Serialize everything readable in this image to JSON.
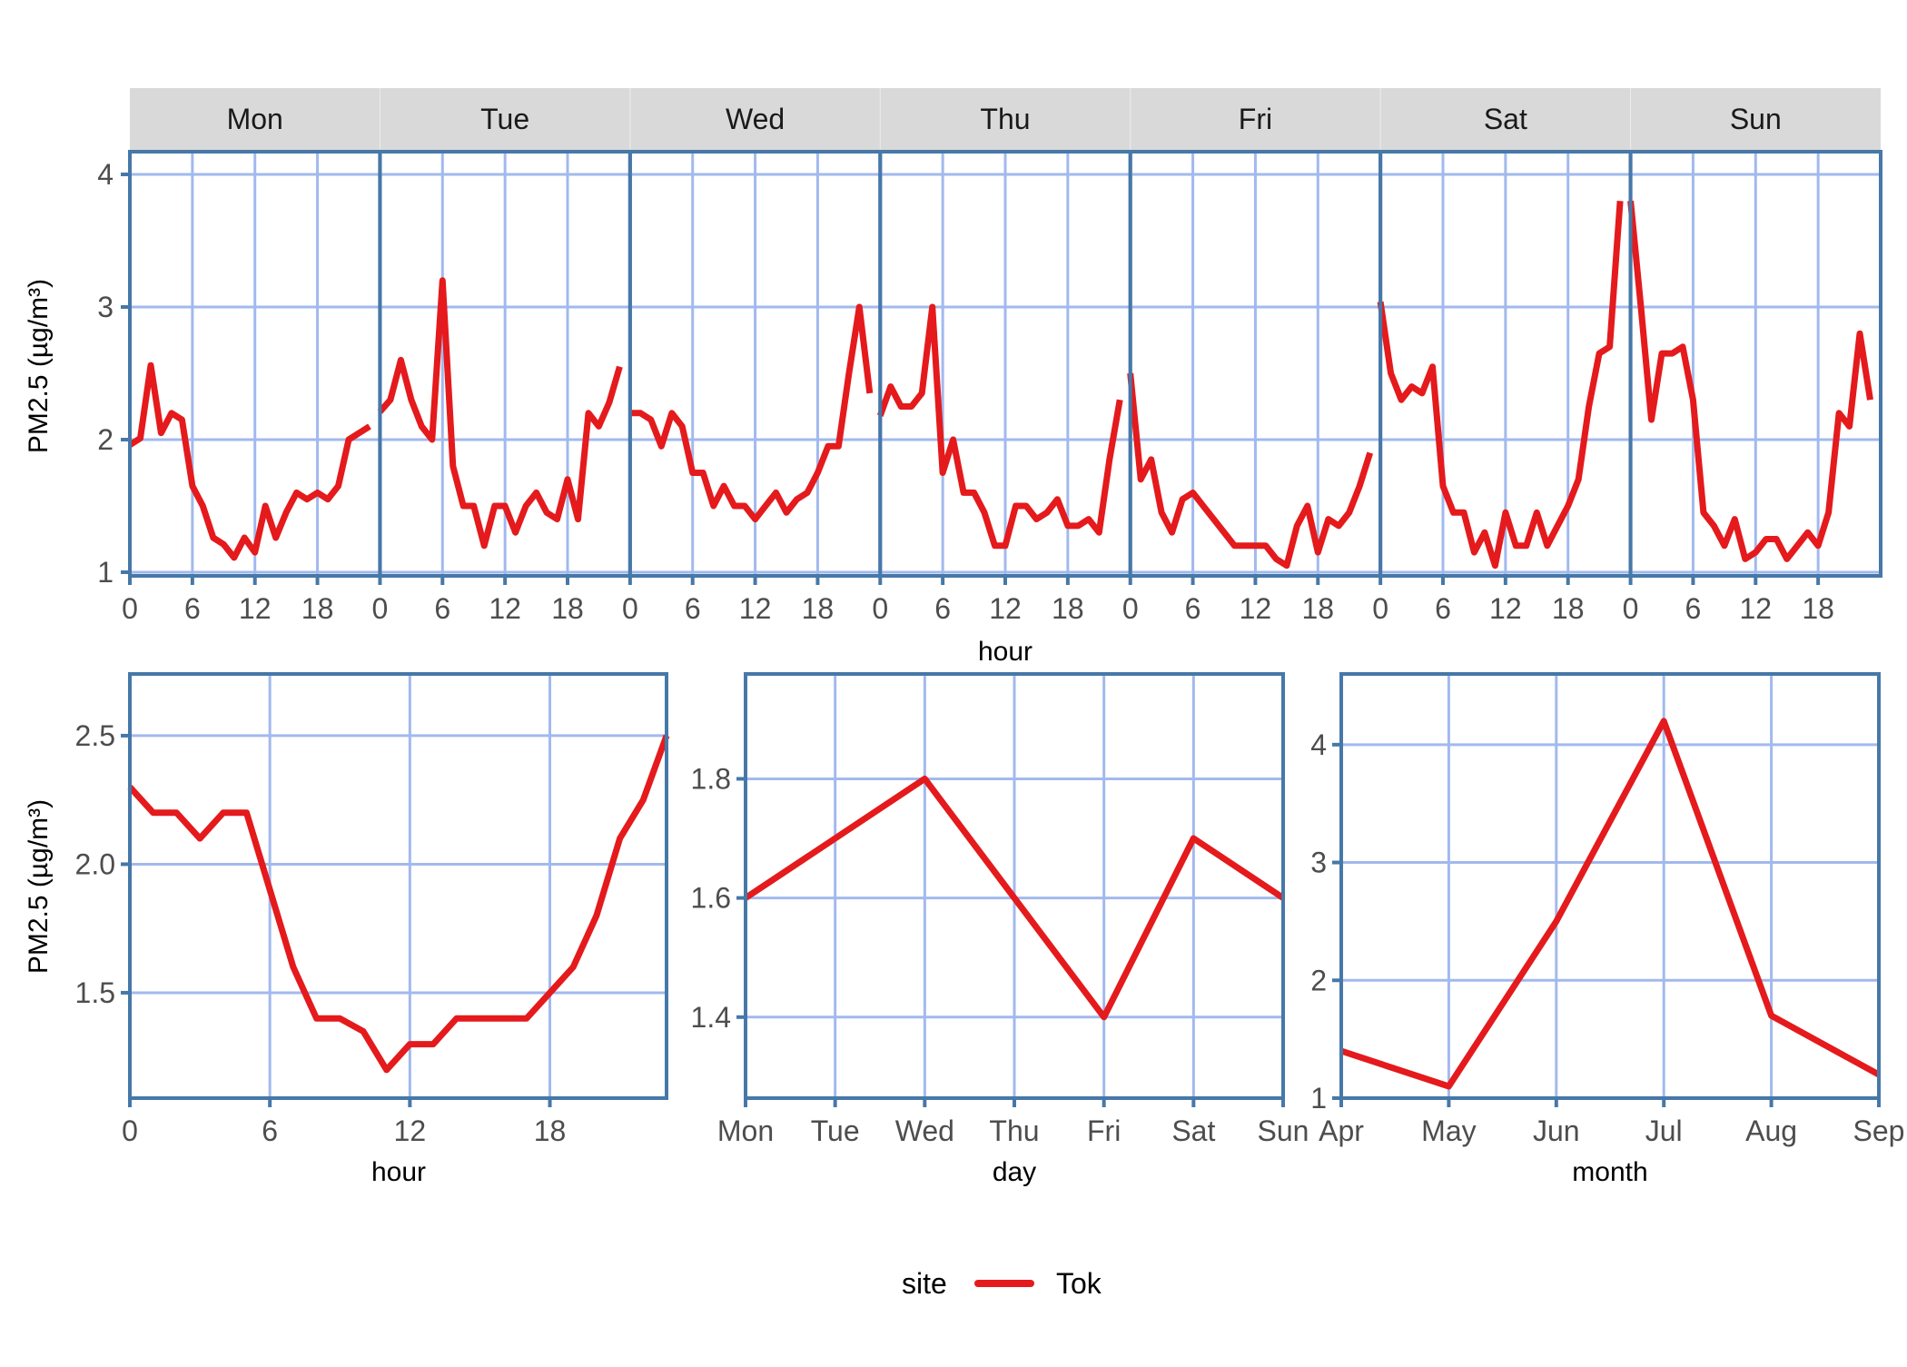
{
  "colors": {
    "series": "#e41a1c",
    "grid": "#a2b9ee",
    "panel_border": "#4678a8",
    "strip_background": "#d9d9d9",
    "tick_label": "#4d4d4d"
  },
  "legend": {
    "title": "site",
    "entries": [
      {
        "label": "Tok",
        "color": "#e41a1c"
      }
    ]
  },
  "chart_data": [
    {
      "type": "line",
      "title": "",
      "facet_by": "weekday",
      "xlabel": "hour",
      "ylabel": "PM2.5 (µg/m³)",
      "ylim": [
        0.95,
        4.15
      ],
      "yticks": [
        1,
        2,
        3,
        4
      ],
      "xticks": [
        0,
        6,
        12,
        18
      ],
      "grid": true,
      "legend_position": "bottom",
      "x": [
        0,
        1,
        2,
        3,
        4,
        5,
        6,
        7,
        8,
        9,
        10,
        11,
        12,
        13,
        14,
        15,
        16,
        17,
        18,
        19,
        20,
        21,
        22,
        23
      ],
      "panels": [
        {
          "label": "Mon",
          "series": [
            {
              "name": "Tok",
              "values": [
                1.96,
                2.01,
                2.56,
                2.05,
                2.2,
                2.15,
                1.65,
                1.5,
                1.26,
                1.21,
                1.11,
                1.26,
                1.15,
                1.5,
                1.26,
                1.45,
                1.6,
                1.55,
                1.6,
                1.55,
                1.65,
                2.0,
                2.05,
                2.1
              ]
            }
          ]
        },
        {
          "label": "Tue",
          "series": [
            {
              "name": "Tok",
              "values": [
                2.21,
                2.3,
                2.6,
                2.3,
                2.1,
                2.0,
                3.2,
                1.8,
                1.5,
                1.5,
                1.2,
                1.5,
                1.5,
                1.3,
                1.5,
                1.6,
                1.45,
                1.4,
                1.7,
                1.4,
                2.2,
                2.1,
                2.28,
                2.55
              ]
            }
          ]
        },
        {
          "label": "Wed",
          "series": [
            {
              "name": "Tok",
              "values": [
                2.2,
                2.2,
                2.15,
                1.95,
                2.2,
                2.1,
                1.75,
                1.75,
                1.5,
                1.65,
                1.5,
                1.5,
                1.4,
                1.5,
                1.6,
                1.45,
                1.55,
                1.6,
                1.75,
                1.95,
                1.95,
                2.5,
                3.0,
                2.35
              ]
            }
          ]
        },
        {
          "label": "Thu",
          "series": [
            {
              "name": "Tok",
              "values": [
                2.18,
                2.4,
                2.25,
                2.25,
                2.35,
                3.0,
                1.75,
                2.0,
                1.6,
                1.6,
                1.45,
                1.2,
                1.2,
                1.5,
                1.5,
                1.4,
                1.45,
                1.55,
                1.35,
                1.35,
                1.4,
                1.3,
                1.85,
                2.3
              ]
            }
          ]
        },
        {
          "label": "Fri",
          "series": [
            {
              "name": "Tok",
              "values": [
                2.5,
                1.7,
                1.85,
                1.45,
                1.3,
                1.55,
                1.6,
                1.5,
                1.4,
                1.3,
                1.2,
                1.2,
                1.2,
                1.2,
                1.1,
                1.05,
                1.35,
                1.5,
                1.15,
                1.4,
                1.35,
                1.45,
                1.65,
                1.9
              ]
            }
          ]
        },
        {
          "label": "Sat",
          "series": [
            {
              "name": "Tok",
              "values": [
                3.04,
                2.5,
                2.3,
                2.4,
                2.35,
                2.55,
                1.65,
                1.45,
                1.45,
                1.15,
                1.3,
                1.05,
                1.45,
                1.2,
                1.2,
                1.45,
                1.2,
                1.35,
                1.5,
                1.7,
                2.25,
                2.65,
                2.7,
                3.8
              ]
            }
          ]
        },
        {
          "label": "Sun",
          "series": [
            {
              "name": "Tok",
              "values": [
                3.8,
                3.0,
                2.15,
                2.65,
                2.65,
                2.7,
                2.3,
                1.45,
                1.35,
                1.2,
                1.4,
                1.1,
                1.15,
                1.25,
                1.25,
                1.1,
                1.2,
                1.3,
                1.2,
                1.45,
                2.2,
                2.1,
                2.8,
                2.3
              ]
            }
          ]
        }
      ]
    },
    {
      "type": "line",
      "title": "",
      "xlabel": "hour",
      "ylabel": "PM2.5 (µg/m³)",
      "ylim": [
        1.09,
        2.74
      ],
      "yticks": [
        1.5,
        2.0,
        2.5
      ],
      "ytick_labels": [
        "1.5",
        "2.0",
        "2.5"
      ],
      "xticks": [
        0,
        6,
        12,
        18
      ],
      "xlim": [
        0,
        23
      ],
      "grid": true,
      "x": [
        0,
        1,
        2,
        3,
        4,
        5,
        6,
        7,
        8,
        9,
        10,
        11,
        12,
        13,
        14,
        15,
        16,
        17,
        18,
        19,
        20,
        21,
        22,
        23
      ],
      "series": [
        {
          "name": "Tok",
          "values": [
            2.3,
            2.2,
            2.2,
            2.1,
            2.2,
            2.2,
            1.9,
            1.6,
            1.4,
            1.4,
            1.35,
            1.2,
            1.3,
            1.3,
            1.4,
            1.4,
            1.4,
            1.4,
            1.5,
            1.6,
            1.8,
            2.1,
            2.25,
            2.5
          ]
        }
      ]
    },
    {
      "type": "line",
      "title": "",
      "xlabel": "day",
      "ylabel": "",
      "ylim": [
        1.264,
        1.976
      ],
      "yticks": [
        1.4,
        1.6,
        1.8
      ],
      "ytick_labels": [
        "1.4",
        "1.6",
        "1.8"
      ],
      "grid": true,
      "categories": [
        "Mon",
        "Tue",
        "Wed",
        "Thu",
        "Fri",
        "Sat",
        "Sun"
      ],
      "series": [
        {
          "name": "Tok",
          "values": [
            1.6,
            1.7,
            1.8,
            1.6,
            1.4,
            1.7,
            1.6
          ]
        }
      ]
    },
    {
      "type": "line",
      "title": "",
      "xlabel": "month",
      "ylabel": "",
      "ylim": [
        1.0,
        4.6
      ],
      "yticks": [
        1,
        2,
        3,
        4
      ],
      "ytick_labels": [
        "1",
        "2",
        "3",
        "4"
      ],
      "grid": true,
      "categories": [
        "Apr",
        "May",
        "Jun",
        "Jul",
        "Aug",
        "Sep"
      ],
      "series": [
        {
          "name": "Tok",
          "values": [
            1.4,
            1.1,
            2.5,
            4.2,
            1.7,
            1.2
          ]
        }
      ]
    }
  ]
}
